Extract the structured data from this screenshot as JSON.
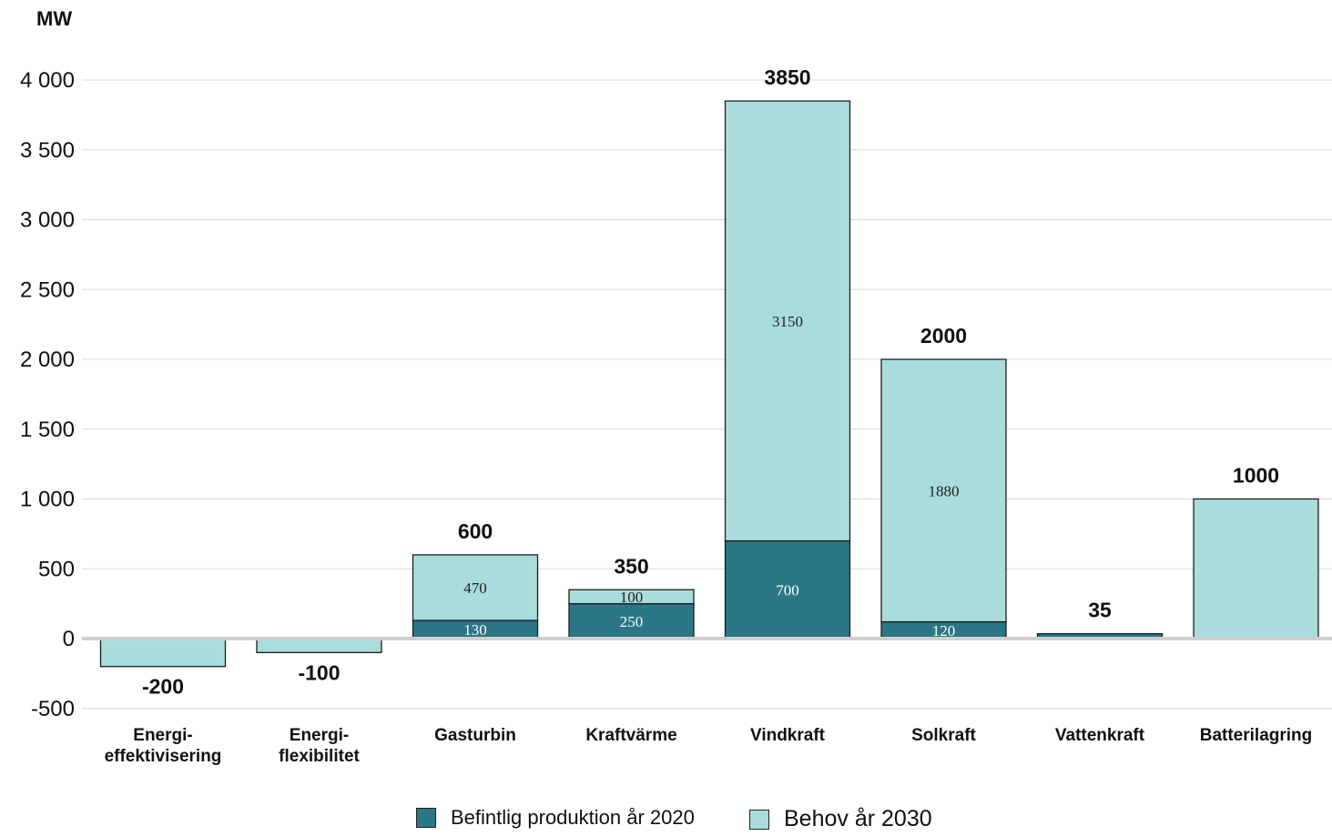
{
  "chart_data": {
    "type": "bar",
    "stacked": true,
    "unit_label": "MW",
    "ylim": [
      -500,
      4000
    ],
    "yticks": [
      {
        "value": 4000,
        "label": "4 000"
      },
      {
        "value": 3500,
        "label": "3 500"
      },
      {
        "value": 3000,
        "label": "3 000"
      },
      {
        "value": 2500,
        "label": "2 500"
      },
      {
        "value": 2000,
        "label": "2 000"
      },
      {
        "value": 1500,
        "label": "1 500"
      },
      {
        "value": 1000,
        "label": "1 000"
      },
      {
        "value": 500,
        "label": "500"
      },
      {
        "value": 0,
        "label": "0"
      },
      {
        "value": -500,
        "label": "-500"
      }
    ],
    "grid": true,
    "legend_position": "bottom-center",
    "categories": [
      [
        "Energi-",
        "effektivisering"
      ],
      [
        "Energi-",
        "flexibilitet"
      ],
      [
        "Gasturbin"
      ],
      [
        "Kraftvärme"
      ],
      [
        "Vindkraft"
      ],
      [
        "Solkraft"
      ],
      [
        "Vattenkraft"
      ],
      [
        "Batterilagring"
      ]
    ],
    "series": [
      {
        "name": "Befintlig produktion år 2020",
        "color": "#2b7785",
        "values": [
          0,
          0,
          130,
          250,
          700,
          120,
          35,
          0
        ],
        "value_labels": [
          "",
          "",
          "130",
          "250",
          "700",
          "120",
          "",
          ""
        ]
      },
      {
        "name": "Behov år 2030",
        "color": "#a9dcdc",
        "values": [
          -200,
          -100,
          470,
          100,
          3150,
          1880,
          0,
          1000
        ],
        "value_labels": [
          "",
          "",
          "470",
          "100",
          "3150",
          "1880",
          "",
          ""
        ]
      }
    ],
    "totals": [
      "-200",
      "-100",
      "600",
      "350",
      "3850",
      "2000",
      "35",
      "1000"
    ]
  }
}
